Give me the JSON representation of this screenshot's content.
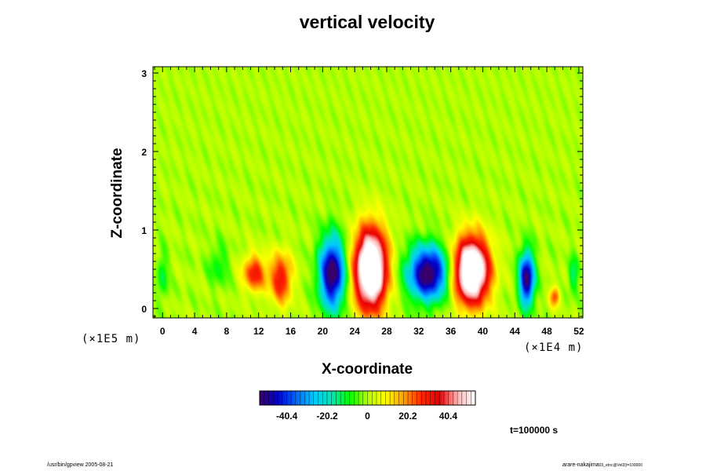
{
  "chart_data": {
    "type": "heatmap",
    "title": "vertical velocity",
    "xlabel": "X-coordinate",
    "ylabel": "Z-coordinate",
    "x_unit": "(×1E4 m)",
    "y_unit": "(×1E5 m)",
    "x_ticks": [
      "0",
      "4",
      "8",
      "12",
      "16",
      "20",
      "24",
      "28",
      "32",
      "36",
      "40",
      "44",
      "48",
      "52"
    ],
    "y_ticks": [
      "0",
      "1",
      "2",
      "3"
    ],
    "xlim": [
      -1.2,
      52.5
    ],
    "ylim": [
      -0.12,
      3.08
    ],
    "colorbar": {
      "range": [
        -54,
        54
      ],
      "tick_labels": [
        "-40.4",
        "-20.2",
        "0",
        "20.2",
        "40.4"
      ],
      "tick_values": [
        -40.4,
        -20.2,
        0,
        20.2,
        40.4
      ]
    },
    "colormap": [
      "#3a006a",
      "#0000cc",
      "#0064ff",
      "#00c8ff",
      "#00e6b4",
      "#00ff00",
      "#b4ff00",
      "#ffff00",
      "#ffa000",
      "#ff2800",
      "#e60000",
      "#ffb4b4",
      "#ffffff"
    ],
    "cells": [
      {
        "x": 0.0,
        "z": 0.42,
        "sx": 0.6,
        "sz": 0.28,
        "w": -12
      },
      {
        "x": 7.0,
        "z": 0.55,
        "sx": 1.2,
        "sz": 0.25,
        "w": -10
      },
      {
        "x": 11.5,
        "z": 0.45,
        "sx": 1.4,
        "sz": 0.22,
        "w": 30
      },
      {
        "x": 14.8,
        "z": 0.38,
        "sx": 1.3,
        "sz": 0.3,
        "w": 32
      },
      {
        "x": 21.2,
        "z": 0.45,
        "sx": 1.5,
        "sz": 0.42,
        "w": -58
      },
      {
        "x": 26.0,
        "z": 0.5,
        "sx": 1.9,
        "sz": 0.48,
        "w": 82
      },
      {
        "x": 33.2,
        "z": 0.45,
        "sx": 2.4,
        "sz": 0.32,
        "w": -58
      },
      {
        "x": 38.6,
        "z": 0.48,
        "sx": 2.1,
        "sz": 0.4,
        "w": 78
      },
      {
        "x": 45.5,
        "z": 0.38,
        "sx": 0.9,
        "sz": 0.32,
        "w": -55
      },
      {
        "x": 49.0,
        "z": 0.15,
        "sx": 0.6,
        "sz": 0.12,
        "w": 25
      },
      {
        "x": 51.3,
        "z": 0.42,
        "sx": 0.55,
        "sz": 0.22,
        "w": -15
      }
    ],
    "time_label": "t=100000 s",
    "footer_left": "/usr/bin/gpview 2005-08-21",
    "footer_right": "arare-nakajima",
    "footer_right_sub": "03_etnc@Vel2(t=100000"
  }
}
